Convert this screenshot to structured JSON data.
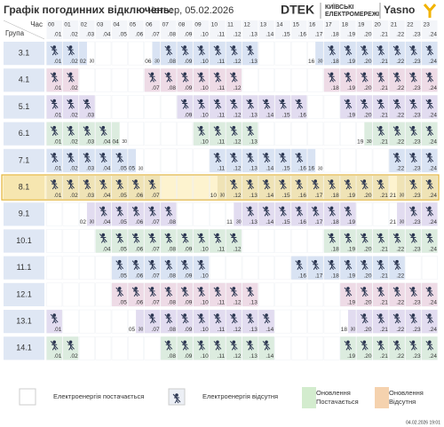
{
  "header": {
    "title": "Графік погодинних відключень:",
    "date": "Четвер, 05.02.2026",
    "brand1": "DTEK",
    "brand2_line1": "КИЇВСЬКІ",
    "brand2_line2": "ЕЛЕКТРОМЕРЕЖІ",
    "brand3": "Yasno"
  },
  "table": {
    "corner_time": "Час",
    "corner_group": "Група",
    "half_label": "30",
    "highlight_group": "8.1",
    "hours": [
      {
        "start": "00",
        "end": ".01"
      },
      {
        "start": "01",
        "end": ".02"
      },
      {
        "start": "02",
        "end": ".03"
      },
      {
        "start": "03",
        "end": ".04"
      },
      {
        "start": "04",
        "end": ".05"
      },
      {
        "start": "05",
        "end": ".06"
      },
      {
        "start": "06",
        "end": ".07"
      },
      {
        "start": "07",
        "end": ".08"
      },
      {
        "start": "08",
        "end": ".09"
      },
      {
        "start": "09",
        "end": ".10"
      },
      {
        "start": "10",
        "end": ".11"
      },
      {
        "start": "11",
        "end": ".12"
      },
      {
        "start": "12",
        "end": ".13"
      },
      {
        "start": "13",
        "end": ".14"
      },
      {
        "start": "14",
        "end": ".15"
      },
      {
        "start": "15",
        "end": ".16"
      },
      {
        "start": "16",
        "end": ".17"
      },
      {
        "start": "17",
        "end": ".18"
      },
      {
        "start": "18",
        "end": ".19"
      },
      {
        "start": "19",
        "end": ".20"
      },
      {
        "start": "20",
        "end": ".21"
      },
      {
        "start": "21",
        "end": ".22"
      },
      {
        "start": "22",
        "end": ".23"
      },
      {
        "start": "23",
        "end": ".24"
      }
    ],
    "off_colors": [
      "#d9e3f3",
      "#eedbe6",
      "#e2dcf0",
      "#dcecdf"
    ],
    "rows": [
      {
        "group": "3.1",
        "slots": "XXa...bXXXXXX...bXXXXXXX"
      },
      {
        "group": "4.1",
        "slots": "XX....XXXXXX.....XXXXXXX"
      },
      {
        "group": "5.1",
        "slots": "XXX.....XXXXXXXX..XXXXXX"
      },
      {
        "group": "6.1",
        "slots": "XXXXa....XXXX......bXXXX"
      },
      {
        "group": "7.1",
        "slots": "XXXXXa....XXXXXXa....XXX"
      },
      {
        "group": "8.1",
        "slots": "XXXXXXX...bXXXXXXXXXXbXX"
      },
      {
        "group": "9.1",
        "slots": "..bXXXXX...bXXXXXXX..bXX"
      },
      {
        "group": "10.1",
        "slots": "...XXXXXXXXX.....XXXXXXX"
      },
      {
        "group": "11.1",
        "slots": "....XXXXXX.....XXXXXXX.."
      },
      {
        "group": "12.1",
        "slots": "....XXXXXXXXX.....XXXXXX"
      },
      {
        "group": "13.1",
        "slots": "X....bXXXXXXXX....bXXXXX"
      },
      {
        "group": "14.1",
        "slots": "XX.....XXXXXXX....XXXXXX"
      }
    ]
  },
  "legend": {
    "on": "Електроенергія постачається",
    "off": "Електроенергія відсутня",
    "upd_on": [
      "Оновлення",
      "Постачається"
    ],
    "upd_off": [
      "Оновлення",
      "Відсутня"
    ]
  },
  "footer": {
    "timestamp": "04.02.2026 19:01"
  }
}
